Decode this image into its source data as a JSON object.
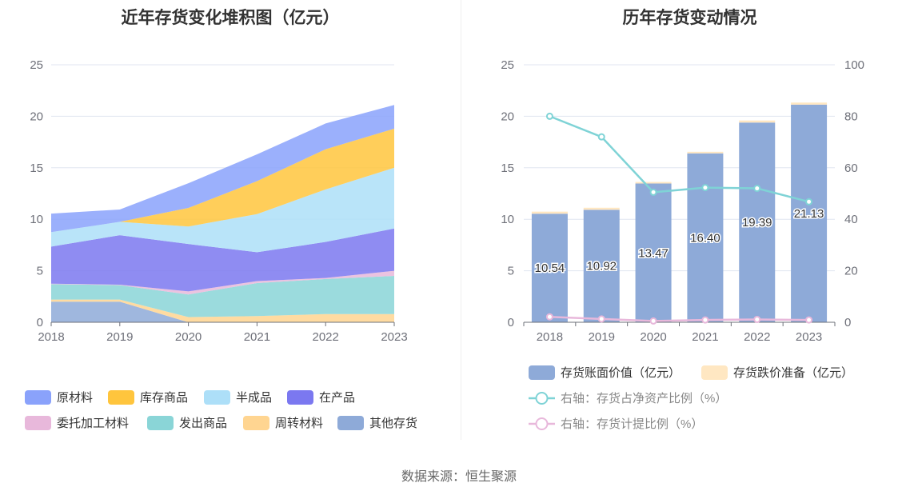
{
  "chart_data": [
    {
      "type": "area",
      "stacked": true,
      "title": "近年存货变化堆积图（亿元）",
      "categories": [
        "2018",
        "2019",
        "2020",
        "2021",
        "2022",
        "2023"
      ],
      "ylim": [
        0,
        25
      ],
      "yticks": [
        "0",
        "5",
        "10",
        "15",
        "20",
        "25"
      ],
      "grid": true,
      "legend_position": "bottom",
      "series": [
        {
          "name": "其他存货",
          "color": "#8eaad8",
          "values": [
            2.0,
            2.0,
            0.0,
            0.0,
            0.0,
            0.0
          ]
        },
        {
          "name": "周转材料",
          "color": "#ffd591",
          "values": [
            0.2,
            0.2,
            0.5,
            0.6,
            0.8,
            0.8
          ]
        },
        {
          "name": "发出商品",
          "color": "#8ad5d7",
          "values": [
            1.5,
            1.4,
            2.2,
            3.2,
            3.4,
            3.7
          ]
        },
        {
          "name": "委托加工材料",
          "color": "#e8b8db",
          "values": [
            0.05,
            0.05,
            0.3,
            0.2,
            0.1,
            0.5
          ]
        },
        {
          "name": "在产品",
          "color": "#7b78f0",
          "values": [
            3.6,
            4.8,
            4.6,
            2.8,
            3.5,
            4.1
          ]
        },
        {
          "name": "半成品",
          "color": "#addff8",
          "values": [
            1.4,
            1.3,
            1.7,
            3.7,
            5.1,
            5.9
          ]
        },
        {
          "name": "库存商品",
          "color": "#ffc53d",
          "values": [
            0.0,
            0.0,
            1.8,
            3.2,
            3.9,
            3.8
          ]
        },
        {
          "name": "原材料",
          "color": "#8aa2fb",
          "values": [
            1.8,
            1.2,
            2.4,
            2.6,
            2.5,
            2.3
          ]
        }
      ]
    },
    {
      "type": "bar",
      "stacked": true,
      "title": "历年存货变动情况",
      "categories": [
        "2018",
        "2019",
        "2020",
        "2021",
        "2022",
        "2023"
      ],
      "ylim": [
        0,
        25
      ],
      "yticks": [
        "0",
        "5",
        "10",
        "15",
        "20",
        "25"
      ],
      "y2lim": [
        0,
        100
      ],
      "y2ticks": [
        "0",
        "20",
        "40",
        "60",
        "80",
        "100"
      ],
      "grid": true,
      "legend_position": "bottom",
      "series": [
        {
          "name": "存货账面价值（亿元）",
          "color": "#8eaad8",
          "values": [
            10.54,
            10.92,
            13.47,
            16.4,
            19.39,
            21.13
          ],
          "labels": [
            "10.54",
            "10.92",
            "13.47",
            "16.40",
            "19.39",
            "21.13"
          ]
        },
        {
          "name": "存货跌价准备（亿元）",
          "color": "#ffe7c2",
          "values": [
            0.2,
            0.2,
            0.15,
            0.15,
            0.2,
            0.2
          ]
        },
        {
          "name": "右轴：存货占净资产比例（%）",
          "type": "line",
          "axis": "right",
          "color": "#7fd3d6",
          "values": [
            80,
            72,
            50.5,
            52.3,
            52,
            46.8
          ]
        },
        {
          "name": "右轴：存货计提比例（%）",
          "type": "line",
          "axis": "right",
          "color": "#e8b8db",
          "values": [
            2.1,
            1.3,
            0.5,
            0.9,
            1.1,
            0.9
          ]
        }
      ]
    }
  ],
  "source_text": "数据来源：恒生聚源"
}
